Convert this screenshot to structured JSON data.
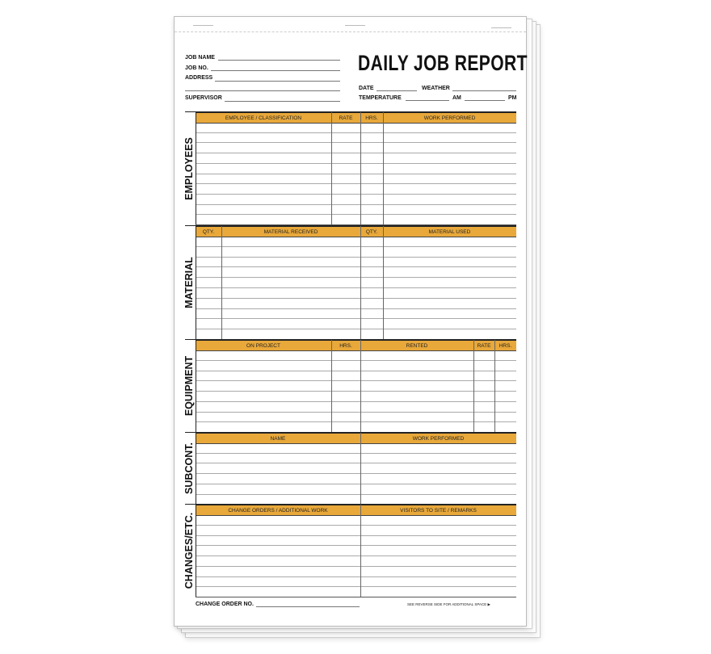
{
  "form": {
    "title": "DAILY JOB REPORT",
    "fields": {
      "job_name": "JOB NAME",
      "job_no": "JOB NO.",
      "address": "ADDRESS",
      "supervisor": "SUPERVISOR",
      "date": "DATE",
      "weather": "WEATHER",
      "temperature": "TEMPERATURE",
      "am": "AM",
      "pm": "PM"
    },
    "sections": [
      {
        "label": "EMPLOYEES",
        "columns": [
          "EMPLOYEE / CLASSIFICATION",
          "RATE",
          "HRS.",
          "WORK PERFORMED"
        ]
      },
      {
        "label": "MATERIAL",
        "columns": [
          "QTY.",
          "MATERIAL RECEIVED",
          "QTY.",
          "MATERIAL USED"
        ]
      },
      {
        "label": "EQUIPMENT",
        "columns": [
          "ON PROJECT",
          "HRS.",
          "RENTED",
          "RATE",
          "HRS."
        ]
      },
      {
        "label": "SUBCONT.",
        "columns": [
          "NAME",
          "WORK PERFORMED"
        ]
      },
      {
        "label": "CHANGES/ETC.",
        "columns": [
          "CHANGE ORDERS / ADDITIONAL WORK",
          "VISITORS TO SITE / REMARKS"
        ]
      }
    ],
    "footer": {
      "change_order": "CHANGE ORDER NO.",
      "reverse_note": "SEE REVERSE SIDE FOR ADDITIONAL SPACE ▶"
    },
    "colors": {
      "header_bar": "#e8a83a"
    }
  }
}
